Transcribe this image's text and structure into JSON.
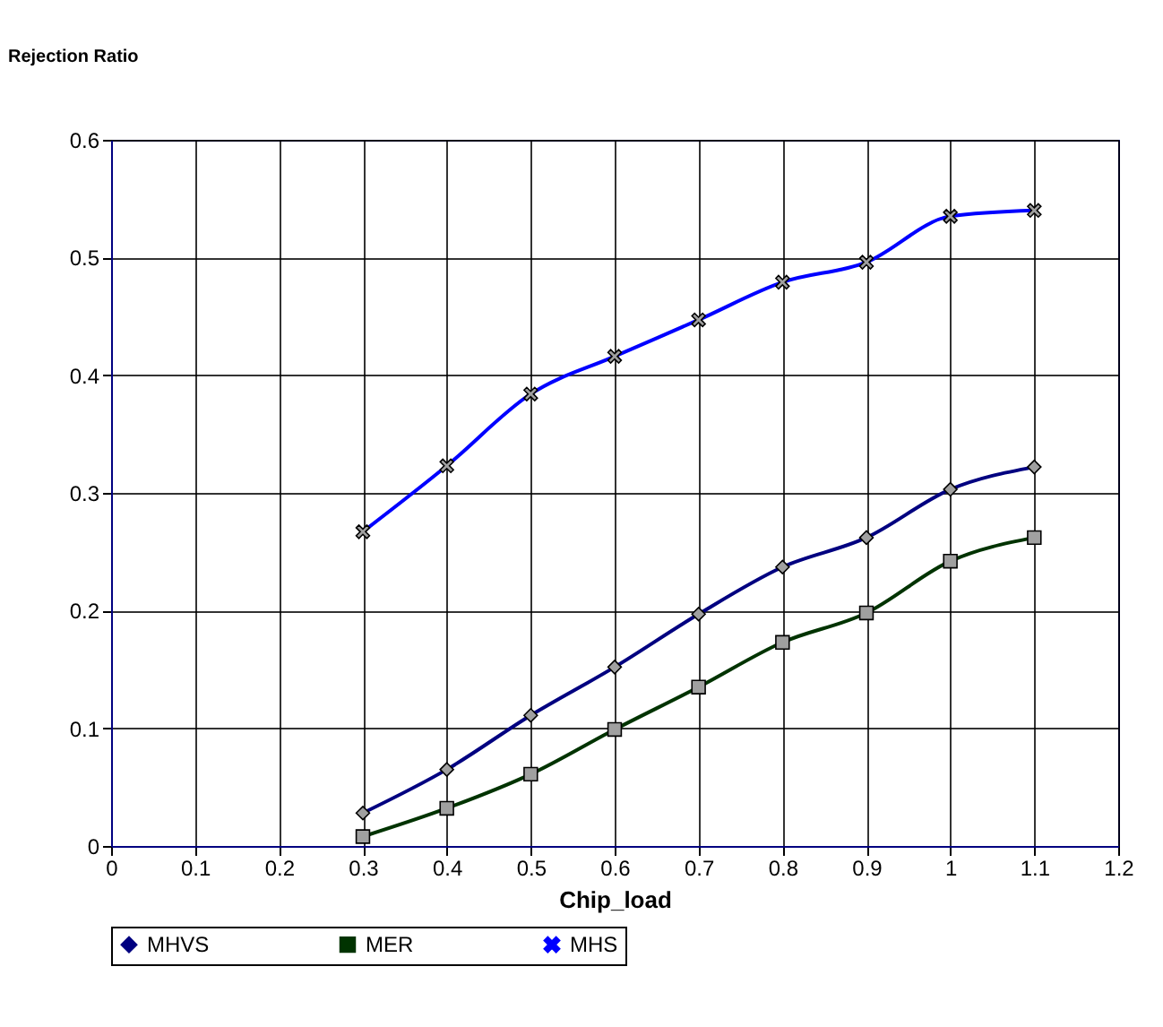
{
  "chart_data": {
    "type": "line",
    "xlabel": "Chip_load",
    "ylabel": "Rejection Ratio",
    "x": [
      0.3,
      0.4,
      0.5,
      0.6,
      0.7,
      0.8,
      0.9,
      1,
      1.1
    ],
    "series": [
      {
        "name": "MHVS",
        "color": "#000080",
        "marker": "diamond",
        "values": [
          0.028,
          0.065,
          0.111,
          0.152,
          0.197,
          0.237,
          0.262,
          0.303,
          0.322
        ]
      },
      {
        "name": "MER",
        "color": "#003300",
        "marker": "square",
        "values": [
          0.008,
          0.032,
          0.061,
          0.099,
          0.135,
          0.173,
          0.198,
          0.242,
          0.262
        ]
      },
      {
        "name": "MHS",
        "color": "#0000ff",
        "marker": "cross",
        "values": [
          0.267,
          0.323,
          0.384,
          0.416,
          0.447,
          0.479,
          0.496,
          0.535,
          0.54
        ]
      }
    ],
    "xlim": [
      0,
      1.2
    ],
    "xticks": [
      0,
      0.1,
      0.2,
      0.3,
      0.4,
      0.5,
      0.6,
      0.7,
      0.8,
      0.9,
      1,
      1.1,
      1.2
    ],
    "ylim": [
      0,
      0.6
    ],
    "yticks": [
      0,
      0.1,
      0.2,
      0.3,
      0.4,
      0.5,
      0.6
    ],
    "grid": true,
    "legend": "bottom",
    "line_style": "solid"
  }
}
